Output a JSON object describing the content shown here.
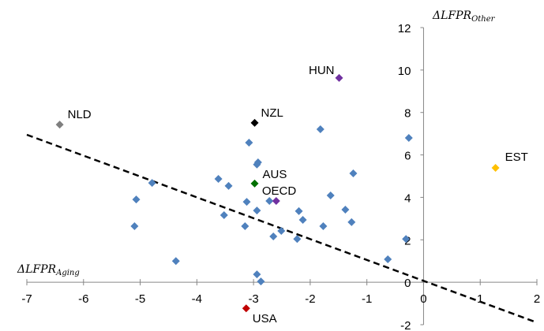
{
  "chart_data": {
    "type": "scatter",
    "x_label": "ΔLFPR",
    "x_label_sub": "Aging",
    "y_label": "ΔLFPR",
    "y_label_sub": "Other",
    "xlim": [
      -7,
      2
    ],
    "xticks": [
      -7,
      -6,
      -5,
      -4,
      -3,
      -2,
      -1,
      0,
      1,
      2
    ],
    "ylim": [
      -2,
      12
    ],
    "yticks": [
      -2,
      0,
      2,
      4,
      6,
      8,
      10,
      12
    ],
    "trendline": {
      "x": [
        -7,
        2
      ],
      "y": [
        6.95,
        -1.9
      ],
      "color": "#000000",
      "dashed": true
    },
    "series": [
      {
        "color": "#4f81bd",
        "x": [
          -0.26,
          -1.82,
          -3.08,
          -2.92,
          -2.94,
          -1.24,
          -4.79,
          -3.62,
          -3.44,
          -1.64,
          -5.07,
          -3.12,
          -2.72,
          -1.38,
          -2.94,
          -2.2,
          -3.52,
          -2.13,
          -1.27,
          -5.1,
          -3.15,
          -1.77,
          -2.51,
          -2.65,
          -2.23,
          -0.31,
          -0.63,
          -4.37,
          -2.94,
          -2.87
        ],
        "y": [
          6.8,
          7.21,
          6.58,
          5.65,
          5.55,
          5.13,
          4.68,
          4.87,
          4.54,
          4.09,
          3.9,
          3.79,
          3.83,
          3.42,
          3.38,
          3.35,
          3.16,
          2.94,
          2.83,
          2.64,
          2.64,
          2.64,
          2.42,
          2.16,
          2.04,
          2.04,
          1.08,
          1.0,
          0.37,
          0.04
        ]
      },
      {
        "name": "NLD",
        "color": "#7f7f7f",
        "x": [
          -6.42
        ],
        "y": [
          7.43
        ]
      },
      {
        "name": "NZL",
        "color": "#000000",
        "x": [
          -2.98
        ],
        "y": [
          7.51
        ]
      },
      {
        "name": "HUN",
        "color": "#7030a0",
        "x": [
          -1.49
        ],
        "y": [
          9.63
        ]
      },
      {
        "name": "AUS",
        "color": "#007000",
        "x": [
          -2.98
        ],
        "y": [
          4.65
        ]
      },
      {
        "name": "OECD",
        "color": "#7030a0",
        "x": [
          -2.6
        ],
        "y": [
          3.83
        ]
      },
      {
        "name": "EST",
        "color": "#ffc000",
        "x": [
          1.27
        ],
        "y": [
          5.39
        ]
      },
      {
        "name": "USA",
        "color": "#c00000",
        "x": [
          -3.13
        ],
        "y": [
          -1.23
        ]
      }
    ]
  }
}
